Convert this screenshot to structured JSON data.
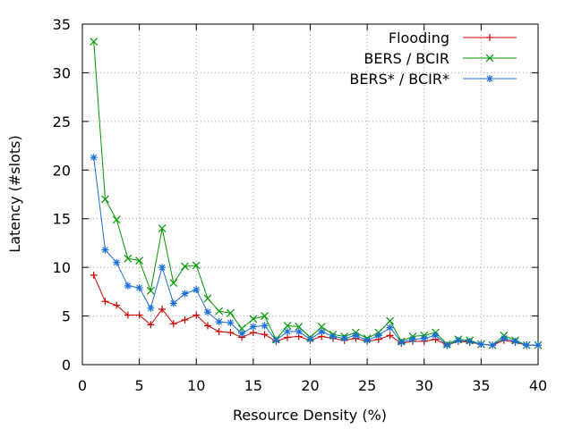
{
  "chart_data": {
    "type": "line",
    "xlabel": "Resource Density (%)",
    "ylabel": "Latency (#slots)",
    "xlim": [
      0,
      40
    ],
    "ylim": [
      0,
      35
    ],
    "xticks": [
      0,
      5,
      10,
      15,
      20,
      25,
      30,
      35,
      40
    ],
    "yticks": [
      0,
      5,
      10,
      15,
      20,
      25,
      30,
      35
    ],
    "grid": true,
    "legend_position": "top-right",
    "x": [
      1,
      2,
      3,
      4,
      5,
      6,
      7,
      8,
      9,
      10,
      11,
      12,
      13,
      14,
      15,
      16,
      17,
      18,
      19,
      20,
      21,
      22,
      23,
      24,
      25,
      26,
      27,
      28,
      29,
      30,
      31,
      32,
      33,
      34,
      35,
      36,
      37,
      38,
      39,
      40
    ],
    "series": [
      {
        "name": "Flooding",
        "color": "#cc0000",
        "marker": "plus",
        "values": [
          9.2,
          6.5,
          6.1,
          5.1,
          5.1,
          4.1,
          5.7,
          4.2,
          4.6,
          5.1,
          4.0,
          3.4,
          3.3,
          2.8,
          3.3,
          3.1,
          2.4,
          2.8,
          2.9,
          2.5,
          2.9,
          2.7,
          2.5,
          2.7,
          2.4,
          2.6,
          3.0,
          2.2,
          2.4,
          2.4,
          2.6,
          2.0,
          2.4,
          2.3,
          2.1,
          2.0,
          2.5,
          2.3,
          2.0,
          2.0
        ]
      },
      {
        "name": "BERS / BCIR",
        "color": "#009900",
        "marker": "cross",
        "values": [
          33.2,
          17.0,
          14.9,
          10.9,
          10.7,
          7.6,
          14.0,
          8.4,
          10.1,
          10.2,
          6.8,
          5.5,
          5.3,
          3.7,
          4.7,
          5.0,
          2.6,
          4.0,
          3.9,
          2.8,
          3.9,
          3.1,
          2.9,
          3.3,
          2.7,
          3.3,
          4.5,
          2.4,
          2.9,
          3.0,
          3.3,
          2.1,
          2.6,
          2.5,
          2.1,
          2.0,
          3.0,
          2.5,
          2.0,
          2.0
        ]
      },
      {
        "name": "BERS* / BCIR*",
        "color": "#1a6fd6",
        "marker": "star",
        "values": [
          21.3,
          11.8,
          10.5,
          8.1,
          7.9,
          5.8,
          10.0,
          6.3,
          7.3,
          7.7,
          5.4,
          4.4,
          4.3,
          3.2,
          3.9,
          4.0,
          2.5,
          3.4,
          3.4,
          2.6,
          3.4,
          2.9,
          2.7,
          3.0,
          2.5,
          3.0,
          3.8,
          2.3,
          2.6,
          2.7,
          3.0,
          2.0,
          2.5,
          2.4,
          2.1,
          2.0,
          2.7,
          2.4,
          2.0,
          2.0
        ]
      }
    ]
  }
}
